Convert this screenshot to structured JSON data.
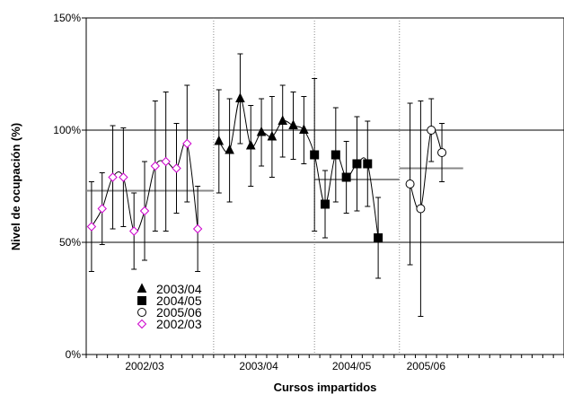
{
  "chart_data": {
    "type": "scatter",
    "ylabel": "Nivel de ocupación (%)",
    "xlabel": "Cursos impartidos",
    "ylim": [
      0,
      150
    ],
    "yticks": [
      0,
      50,
      100,
      150
    ],
    "ytick_labels": [
      "0%",
      "50%",
      "100%",
      "150%"
    ],
    "n_points": 45,
    "categories": [
      "2002/03",
      "2003/04",
      "2004/05",
      "2005/06"
    ],
    "legend_position": "bottom-left",
    "series": [
      {
        "name": "2002/03",
        "marker": "diamond-open",
        "color": "#cc00cc",
        "x": [
          1,
          2,
          3,
          4,
          5,
          6,
          7,
          8,
          9,
          10,
          11,
          12
        ],
        "values": [
          57,
          65,
          79,
          79,
          55,
          64,
          84,
          86,
          83,
          94,
          56,
          null
        ],
        "errors": [
          20,
          16,
          23,
          22,
          17,
          22,
          29,
          31,
          20,
          26,
          19,
          null
        ]
      },
      {
        "name": "2003/04",
        "marker": "triangle",
        "color": "#000000",
        "x": [
          13,
          14,
          15,
          16,
          17,
          18,
          19,
          20,
          21
        ],
        "values": [
          95,
          91,
          114,
          93,
          99,
          97,
          104,
          102,
          100
        ],
        "errors": [
          23,
          23,
          20,
          18,
          15,
          18,
          16,
          15,
          15
        ]
      },
      {
        "name": "2004/05",
        "marker": "square",
        "color": "#000000",
        "x": [
          22,
          23,
          24,
          25,
          26,
          27,
          28,
          29
        ],
        "values": [
          89,
          67,
          89,
          79,
          85,
          85,
          52,
          null
        ],
        "errors": [
          34,
          15,
          21,
          16,
          21,
          19,
          18,
          null
        ]
      },
      {
        "name": "2005/06",
        "marker": "circle-open",
        "color": "#000000",
        "x": [
          31,
          32,
          33,
          34
        ],
        "values": [
          76,
          65,
          100,
          90
        ],
        "errors": [
          36,
          48,
          14,
          13
        ]
      }
    ],
    "overlay_line": {
      "x": [
        1,
        2,
        3,
        4,
        5,
        6,
        7,
        8,
        9,
        10,
        11,
        12,
        13,
        14,
        15,
        16,
        17,
        18,
        19,
        20,
        21,
        22,
        23,
        24,
        25,
        26,
        27,
        28,
        29,
        30,
        31,
        32,
        33,
        34
      ],
      "values": [
        57,
        65,
        79,
        79,
        55,
        64,
        84,
        86,
        83,
        94,
        56,
        null,
        95,
        91,
        114,
        93,
        99,
        97,
        104,
        102,
        100,
        89,
        67,
        89,
        79,
        85,
        85,
        52,
        null,
        null,
        76,
        65,
        100,
        90
      ]
    },
    "period_means": [
      {
        "x_start": 0,
        "x_end": 12,
        "value": 73
      },
      {
        "x_start": 12,
        "x_end": 21.5,
        "value": 100
      },
      {
        "x_start": 21.5,
        "x_end": 29.5,
        "value": 78
      },
      {
        "x_start": 29.5,
        "x_end": 35.5,
        "value": 83
      }
    ],
    "dividers": [
      12,
      21.5,
      29.5
    ],
    "category_centers": [
      6,
      16.75,
      25.5,
      32.5
    ],
    "legend_order": [
      "2003/04",
      "2004/05",
      "2005/06",
      "2002/03"
    ]
  }
}
